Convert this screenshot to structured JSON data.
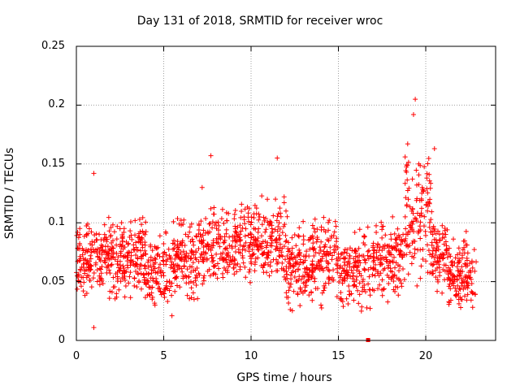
{
  "chart_data": {
    "type": "scatter",
    "title": "Day 131 of 2018, SRMTID for receiver wroc",
    "xlabel": "GPS time / hours",
    "ylabel": "SRMTID / TECUs",
    "xlim": [
      0,
      24
    ],
    "ylim": [
      0,
      0.25
    ],
    "x_ticks": [
      0,
      5,
      10,
      15,
      20
    ],
    "x_tick_labels": [
      "0",
      "5",
      "10",
      "15",
      "20"
    ],
    "y_ticks": [
      0,
      0.05,
      0.1,
      0.15,
      0.2,
      0.25
    ],
    "y_tick_labels": [
      "0",
      "0.05",
      "0.1",
      "0.15",
      "0.2",
      "0.25"
    ],
    "grid": true,
    "marker": "plus",
    "series": [
      {
        "name": "SRMTID",
        "color": "#ff0000",
        "x": [
          0.1,
          0.4,
          0.8,
          1.0,
          1.2,
          1.5,
          1.9,
          2.3,
          2.7,
          3.1,
          3.5,
          3.9,
          4.3,
          4.7,
          5.0,
          5.4,
          5.8,
          6.2,
          6.6,
          7.0,
          7.2,
          7.5,
          7.7,
          8.1,
          8.5,
          8.9,
          9.3,
          9.7,
          10.0,
          10.4,
          10.8,
          11.2,
          11.5,
          11.9,
          12.3,
          12.7,
          13.1,
          13.5,
          13.9,
          14.3,
          14.7,
          15.1,
          15.5,
          15.9,
          16.3,
          16.7,
          17.1,
          17.5,
          17.9,
          18.3,
          18.7,
          19.0,
          19.2,
          19.4,
          19.6,
          19.8,
          20.1,
          20.4,
          20.7,
          21.0,
          21.4,
          21.8,
          22.2,
          22.6,
          0.2,
          1.0,
          2.5,
          4.5,
          6.0,
          8.0,
          10.5,
          12.0,
          14.0,
          16.5,
          18.0,
          19.3,
          20.5,
          22.0
        ],
        "y": [
          0.078,
          0.065,
          0.072,
          0.142,
          0.06,
          0.08,
          0.069,
          0.074,
          0.071,
          0.066,
          0.07,
          0.063,
          0.06,
          0.048,
          0.055,
          0.062,
          0.064,
          0.07,
          0.074,
          0.078,
          0.13,
          0.082,
          0.157,
          0.083,
          0.085,
          0.08,
          0.075,
          0.083,
          0.09,
          0.087,
          0.092,
          0.095,
          0.155,
          0.08,
          0.07,
          0.06,
          0.058,
          0.065,
          0.067,
          0.072,
          0.06,
          0.055,
          0.053,
          0.05,
          0.055,
          0.048,
          0.055,
          0.065,
          0.075,
          0.08,
          0.09,
          0.12,
          0.11,
          0.205,
          0.15,
          0.13,
          0.11,
          0.09,
          0.08,
          0.07,
          0.06,
          0.052,
          0.05,
          0.052,
          0.09,
          0.011,
          0.095,
          0.03,
          0.098,
          0.1,
          0.105,
          0.11,
          0.03,
          0.06,
          0.09,
          0.192,
          0.163,
          0.028
        ],
        "outliers": [
          {
            "x": 16.7,
            "y": 0.0
          }
        ]
      }
    ]
  }
}
